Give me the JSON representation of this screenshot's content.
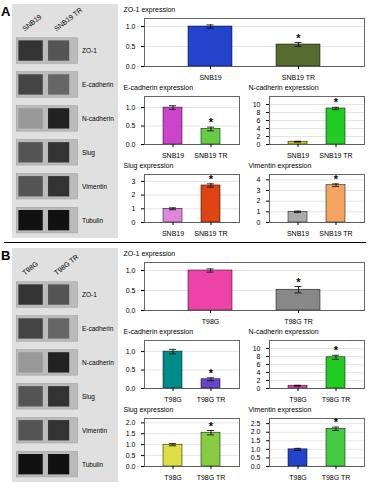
{
  "chart_data": [
    {
      "type": "blot",
      "title": "A",
      "categories": [
        "SNB19",
        "SNB19 TR"
      ],
      "series": [
        {
          "name": "ZO-1",
          "colors": [
            "#333333",
            "#555555"
          ]
        },
        {
          "name": "E-cadherin",
          "colors": [
            "#444444",
            "#666666"
          ]
        },
        {
          "name": "N-cadherin",
          "colors": [
            "#999999",
            "#222222"
          ]
        },
        {
          "name": "Slug",
          "colors": [
            "#555555",
            "#333333"
          ]
        },
        {
          "name": "Vimentin",
          "colors": [
            "#555555",
            "#333333"
          ]
        },
        {
          "name": "Tubulin",
          "colors": [
            "#111111",
            "#111111"
          ]
        }
      ]
    },
    {
      "type": "bar",
      "categories": [
        "SNB19",
        "SNB19 TR"
      ],
      "values": [
        1.0,
        0.55
      ],
      "errors": [
        0.04,
        0.05
      ],
      "colors": [
        "#2244cc",
        "#556B2F"
      ],
      "ylabel": "ZO-1 expression",
      "ylim": [
        0,
        1.2
      ],
      "yticks": [
        {
          "value": 0,
          "label": "0.0"
        },
        0.5,
        {
          "value": 1,
          "label": "1.0"
        }
      ],
      "grid": true,
      "annotations": [
        {
          "text": "*",
          "category": "SNB19 TR"
        }
      ]
    },
    {
      "type": "bar",
      "categories": [
        "SNB19",
        "SNB19 TR"
      ],
      "values": [
        1.0,
        0.42
      ],
      "errors": [
        0.05,
        0.05
      ],
      "colors": [
        "#cc44cc",
        "#66cc44"
      ],
      "ylabel": "E-cadherin expression",
      "ylim": [
        0,
        1.3
      ],
      "yticks": [
        {
          "value": 0,
          "label": "0.0"
        },
        0.5,
        {
          "value": 1,
          "label": "1.0"
        }
      ],
      "grid": true,
      "annotations": [
        {
          "text": "*",
          "category": "SNB19 TR"
        }
      ]
    },
    {
      "type": "bar",
      "categories": [
        "SNB19",
        "SNB19 TR"
      ],
      "values": [
        0.7,
        9.0
      ],
      "errors": [
        0.1,
        0.3
      ],
      "colors": [
        "#cccc22",
        "#22cc22"
      ],
      "ylabel": "N-cadherin expression",
      "ylim": [
        0,
        12
      ],
      "yticks": [
        0,
        2,
        4,
        6,
        8,
        10
      ],
      "grid": true,
      "annotations": [
        {
          "text": "*",
          "category": "SNB19 TR"
        }
      ]
    },
    {
      "type": "bar",
      "categories": [
        "SNB19",
        "SNB19 TR"
      ],
      "values": [
        1.0,
        2.7
      ],
      "errors": [
        0.07,
        0.12
      ],
      "colors": [
        "#dd88dd",
        "#dd4411"
      ],
      "ylabel": "Slug expression",
      "ylim": [
        0,
        3.5
      ],
      "yticks": [
        0,
        1,
        2,
        3
      ],
      "grid": true,
      "annotations": [
        {
          "text": "*",
          "category": "SNB19 TR"
        }
      ]
    },
    {
      "type": "bar",
      "categories": [
        "SNB19",
        "SNB19 TR"
      ],
      "values": [
        1.0,
        3.5
      ],
      "errors": [
        0.07,
        0.12
      ],
      "colors": [
        "#aaaaaa",
        "#f4a460"
      ],
      "ylabel": "Vimentin expression",
      "ylim": [
        0,
        4.5
      ],
      "yticks": [
        0,
        1,
        2,
        3,
        4
      ],
      "grid": true,
      "annotations": [
        {
          "text": "*",
          "category": "SNB19 TR"
        }
      ]
    },
    {
      "type": "blot",
      "title": "B",
      "categories": [
        "T98G",
        "T98G TR"
      ],
      "series": [
        {
          "name": "ZO-1",
          "colors": [
            "#333333",
            "#555555"
          ]
        },
        {
          "name": "E-cadherin",
          "colors": [
            "#444444",
            "#666666"
          ]
        },
        {
          "name": "N-cadherin",
          "colors": [
            "#999999",
            "#222222"
          ]
        },
        {
          "name": "Slug",
          "colors": [
            "#555555",
            "#333333"
          ]
        },
        {
          "name": "Vimentin",
          "colors": [
            "#555555",
            "#333333"
          ]
        },
        {
          "name": "Tubulin",
          "colors": [
            "#111111",
            "#111111"
          ]
        }
      ]
    },
    {
      "type": "bar",
      "categories": [
        "T98G",
        "T98G TR"
      ],
      "values": [
        1.0,
        0.52
      ],
      "errors": [
        0.04,
        0.08
      ],
      "colors": [
        "#ee44aa",
        "#888888"
      ],
      "ylabel": "ZO-1 expression",
      "ylim": [
        0,
        1.2
      ],
      "yticks": [
        {
          "value": 0,
          "label": "0.0"
        },
        0.5,
        {
          "value": 1,
          "label": "1.0"
        }
      ],
      "grid": true,
      "annotations": [
        {
          "text": "*",
          "category": "T98G TR"
        }
      ]
    },
    {
      "type": "bar",
      "categories": [
        "T98G",
        "T98G TR"
      ],
      "values": [
        1.0,
        0.25
      ],
      "errors": [
        0.06,
        0.04
      ],
      "colors": [
        "#008B8B",
        "#6644cc"
      ],
      "ylabel": "E-cadherin expression",
      "ylim": [
        0,
        1.3
      ],
      "yticks": [
        {
          "value": 0,
          "label": "0.0"
        },
        0.5,
        {
          "value": 1,
          "label": "1.0"
        }
      ],
      "grid": true,
      "annotations": [
        {
          "text": "*",
          "category": "T98G TR"
        }
      ]
    },
    {
      "type": "bar",
      "categories": [
        "T98G",
        "T98G TR"
      ],
      "values": [
        0.7,
        7.8
      ],
      "errors": [
        0.1,
        0.5
      ],
      "colors": [
        "#ee44aa",
        "#22cc22"
      ],
      "ylabel": "N-cadherin expression",
      "ylim": [
        0,
        12
      ],
      "yticks": [
        0,
        2,
        4,
        6,
        8,
        10
      ],
      "grid": true,
      "annotations": [
        {
          "text": "*",
          "category": "T98G TR"
        }
      ]
    },
    {
      "type": "bar",
      "categories": [
        "T98G",
        "T98G TR"
      ],
      "values": [
        1.0,
        1.55
      ],
      "errors": [
        0.05,
        0.1
      ],
      "colors": [
        "#dddd44",
        "#88cc44"
      ],
      "ylabel": "Slug expression",
      "ylim": [
        0,
        2.2
      ],
      "yticks": [
        {
          "value": 0,
          "label": "0.0"
        },
        0.5,
        {
          "value": 1,
          "label": "1.0"
        },
        1.5,
        {
          "value": 2,
          "label": "2.0"
        }
      ],
      "grid": true,
      "annotations": [
        {
          "text": "*",
          "category": "T98G TR"
        }
      ]
    },
    {
      "type": "bar",
      "categories": [
        "T98G",
        "T98G TR"
      ],
      "values": [
        1.0,
        2.2
      ],
      "errors": [
        0.06,
        0.1
      ],
      "colors": [
        "#2244cc",
        "#44cc44"
      ],
      "ylabel": "Vimentin expression",
      "ylim": [
        0,
        2.8
      ],
      "yticks": [
        {
          "value": 0,
          "label": "0.0"
        },
        0.5,
        {
          "value": 1,
          "label": "1.0"
        },
        1.5,
        {
          "value": 2,
          "label": "2.0"
        },
        2.5
      ],
      "grid": true,
      "annotations": [
        {
          "text": "*",
          "category": "T98G TR"
        }
      ]
    }
  ]
}
